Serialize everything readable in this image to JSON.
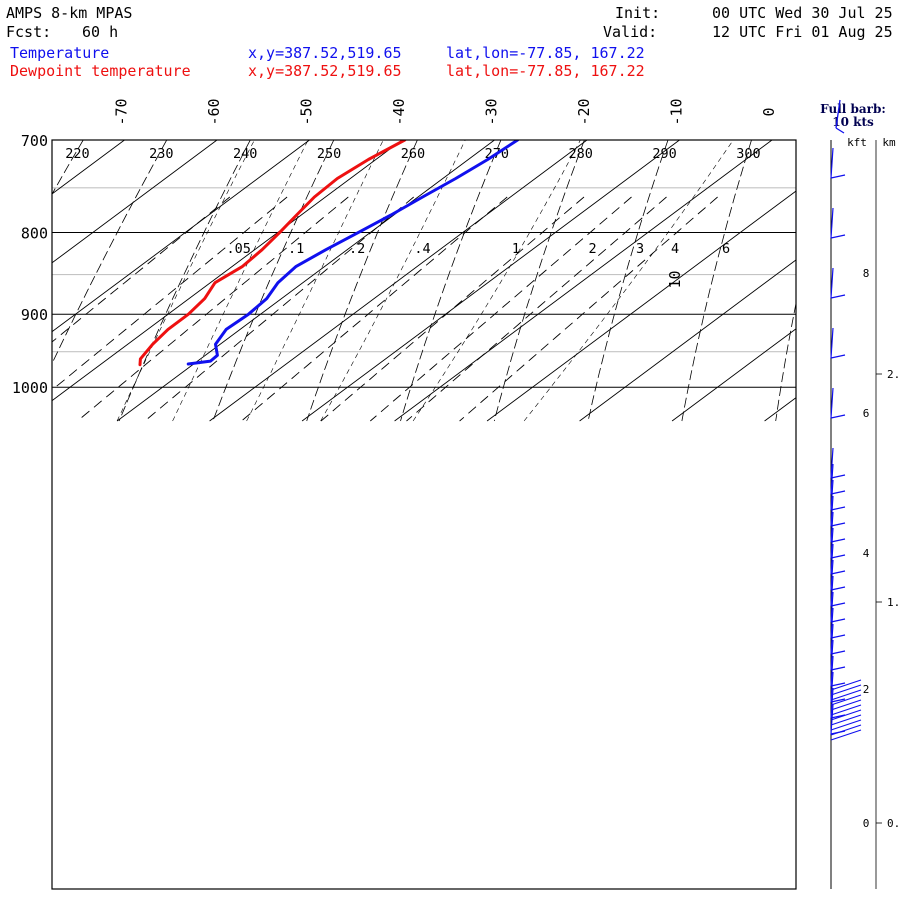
{
  "header": {
    "model": "AMPS 8-km MPAS",
    "fcst_label": "Fcst:",
    "fcst_value": "60 h",
    "init_label": "Init:",
    "init_value": "00 UTC Wed 30 Jul 25",
    "valid_label": "Valid:",
    "valid_value": "12 UTC Fri 01 Aug 25"
  },
  "legend": [
    {
      "name": "Temperature",
      "xy": "x,y=387.52,519.65",
      "latlon": "lat,lon=-77.85, 167.22",
      "color": "#1010ee"
    },
    {
      "name": "Dewpoint temperature",
      "xy": "x,y=387.52,519.65",
      "latlon": "lat,lon=-77.85, 167.22",
      "color": "#ee1010"
    }
  ],
  "wind_panel": {
    "title_line1": "Full barb:",
    "title_line2": "10 kts",
    "kft_label": "kft",
    "km_label": "km",
    "kft_ticks": [
      "0",
      "2",
      "4",
      "6",
      "8"
    ],
    "km_ticks": [
      "0.",
      "1.",
      "2."
    ]
  },
  "chart_data": {
    "type": "line",
    "title": "",
    "ylabel": "",
    "xlabel": "",
    "y_scale": "log (pressure, hPa)",
    "ylim": [
      1050,
      700
    ],
    "skew_degC_per_decade": 45,
    "pressure_ticks": [
      700,
      800,
      900,
      1000
    ],
    "light_isobars": [
      750,
      850,
      950
    ],
    "temperature_ticks": [
      -70,
      -60,
      -50,
      -40,
      -30,
      -20,
      -10,
      0,
      10
    ],
    "theta_labels": [
      220,
      230,
      240,
      250,
      260,
      270,
      280,
      290,
      300
    ],
    "mixing_ratio_labels": [
      ".05",
      ".1",
      ".2",
      ".4",
      "1",
      "2",
      "3",
      "4",
      "6"
    ],
    "mixing_ratio_values": [
      0.05,
      0.1,
      0.2,
      0.4,
      1,
      2,
      3,
      4,
      6
    ],
    "series": [
      {
        "name": "Temperature",
        "color": "#1010ee",
        "points": [
          [
            700,
            -27.5
          ],
          [
            720,
            -27.9
          ],
          [
            740,
            -28.6
          ],
          [
            760,
            -29.5
          ],
          [
            780,
            -30.3
          ],
          [
            800,
            -31.3
          ],
          [
            820,
            -32.3
          ],
          [
            840,
            -33.1
          ],
          [
            860,
            -32.7
          ],
          [
            880,
            -31.6
          ],
          [
            900,
            -31.3
          ],
          [
            920,
            -31.5
          ],
          [
            940,
            -30.5
          ],
          [
            955,
            -28.7
          ],
          [
            963,
            -28.6
          ],
          [
            967,
            -30.6
          ]
        ]
      },
      {
        "name": "Dewpoint temperature",
        "color": "#ee1010",
        "points": [
          [
            700,
            -39.7
          ],
          [
            720,
            -40.8
          ],
          [
            740,
            -41.4
          ],
          [
            760,
            -41.2
          ],
          [
            780,
            -40.5
          ],
          [
            800,
            -39.8
          ],
          [
            820,
            -39.2
          ],
          [
            840,
            -38.9
          ],
          [
            860,
            -39.5
          ],
          [
            880,
            -38.3
          ],
          [
            900,
            -37.8
          ],
          [
            920,
            -37.8
          ],
          [
            940,
            -37.3
          ],
          [
            960,
            -36.5
          ],
          [
            968,
            -35.7
          ]
        ]
      }
    ]
  }
}
